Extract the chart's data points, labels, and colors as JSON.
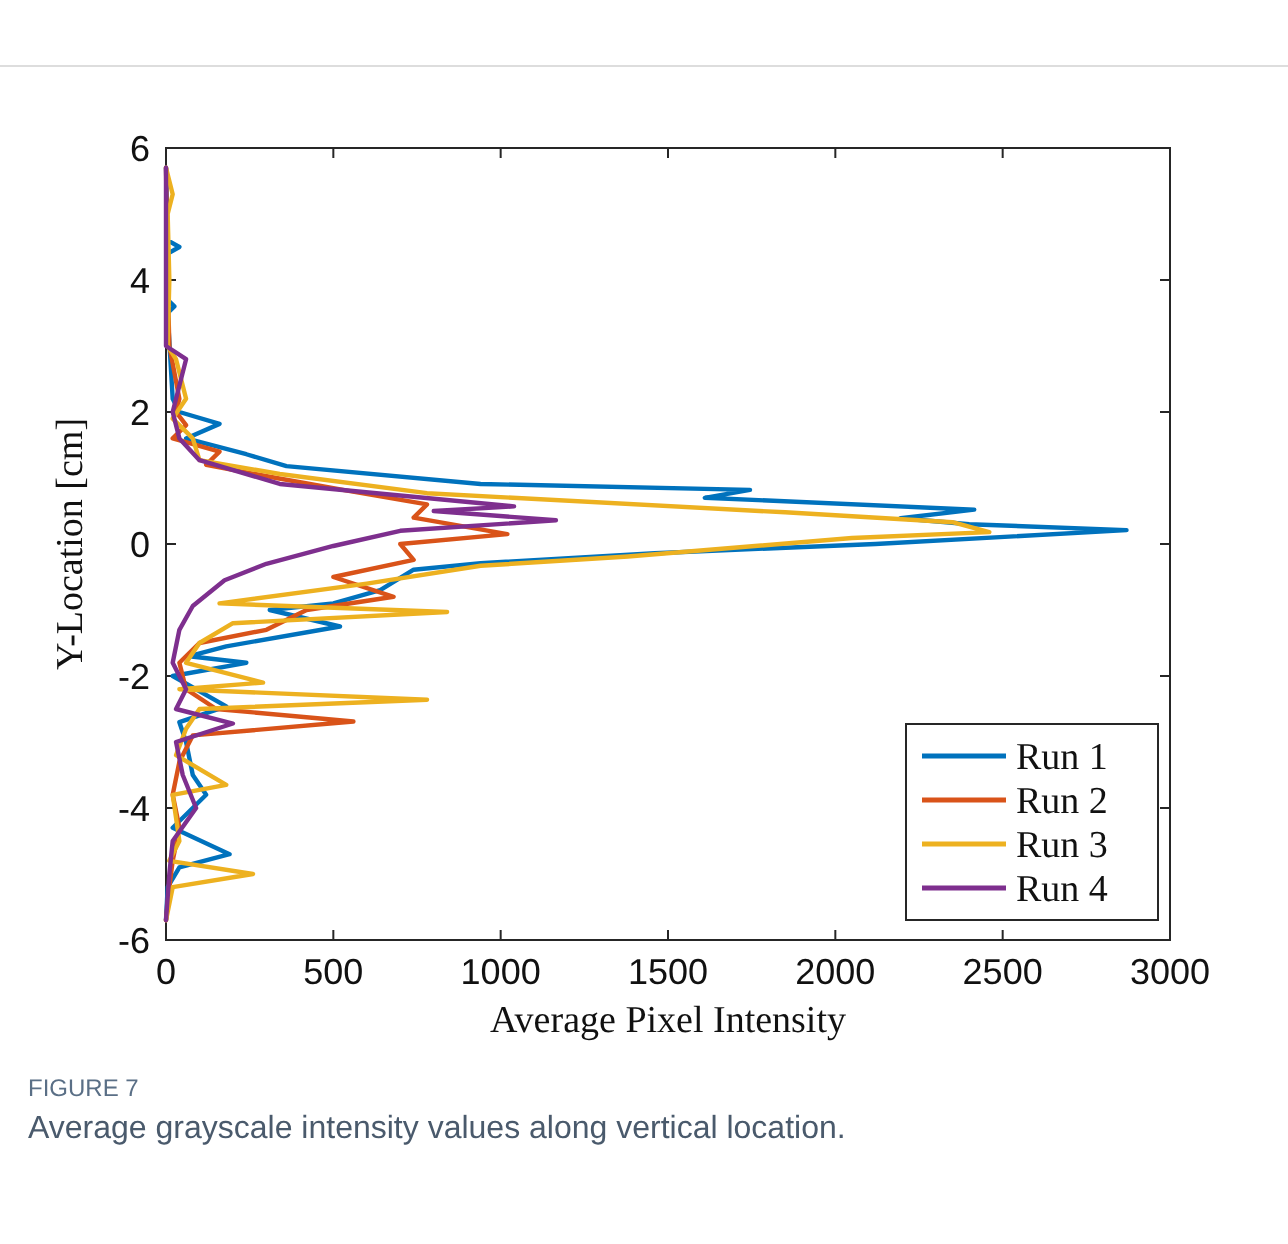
{
  "chart_data": {
    "type": "line",
    "xlabel": "Average Pixel Intensity",
    "ylabel": "Y-Location [cm]",
    "xlim": [
      0,
      3000
    ],
    "xticks": [
      0,
      500,
      1000,
      1500,
      2000,
      2500,
      3000
    ],
    "ylim": [
      -6,
      6
    ],
    "yticks": [
      -6,
      -4,
      -2,
      0,
      2,
      4,
      6
    ],
    "grid": false,
    "legend": "bottom right",
    "annotations": [
      "FIGURE 7",
      "Average grayscale intensity values along vertical location."
    ],
    "series": [
      {
        "name": "Run 1",
        "color": "#0072bd",
        "x": [
          0,
          5,
          40,
          5,
          5,
          25,
          5,
          20,
          40,
          160,
          60,
          240,
          360,
          940,
          1745,
          1610,
          2415,
          2195,
          2400,
          2870,
          2120,
          1460,
          940,
          740,
          640,
          500,
          310,
          520,
          180,
          70,
          240,
          20,
          180,
          40,
          60,
          80,
          120,
          20,
          190,
          40,
          5,
          0
        ],
        "values": [
          5.7,
          4.6,
          4.5,
          4.4,
          3.7,
          3.6,
          3.5,
          2.2,
          2.0,
          1.82,
          1.6,
          1.36,
          1.18,
          0.91,
          0.82,
          0.7,
          0.52,
          0.39,
          0.3,
          0.21,
          0.0,
          -0.14,
          -0.29,
          -0.39,
          -0.7,
          -0.9,
          -1.0,
          -1.25,
          -1.55,
          -1.7,
          -1.8,
          -2.0,
          -2.46,
          -2.7,
          -3.0,
          -3.5,
          -3.8,
          -4.3,
          -4.7,
          -4.9,
          -5.2,
          -5.7
        ]
      },
      {
        "name": "Run 2",
        "color": "#d95319",
        "x": [
          0,
          5,
          10,
          40,
          30,
          60,
          20,
          160,
          120,
          330,
          550,
          780,
          740,
          1020,
          700,
          740,
          500,
          680,
          420,
          300,
          100,
          40,
          60,
          150,
          560,
          80,
          40,
          20,
          40,
          20,
          10,
          0
        ],
        "values": [
          5.7,
          4.0,
          3.0,
          2.2,
          2.0,
          1.8,
          1.6,
          1.4,
          1.2,
          1.0,
          0.8,
          0.6,
          0.4,
          0.15,
          0.0,
          -0.24,
          -0.5,
          -0.8,
          -1.0,
          -1.3,
          -1.5,
          -1.8,
          -2.2,
          -2.5,
          -2.69,
          -2.9,
          -3.3,
          -3.8,
          -4.3,
          -4.8,
          -5.2,
          -5.7
        ]
      },
      {
        "name": "Run 3",
        "color": "#edb120",
        "x": [
          0,
          20,
          5,
          10,
          5,
          30,
          60,
          20,
          80,
          100,
          340,
          780,
          1850,
          2350,
          2460,
          2050,
          1380,
          940,
          600,
          160,
          840,
          200,
          100,
          60,
          290,
          40,
          780,
          100,
          60,
          30,
          180,
          20,
          40,
          10,
          260,
          20,
          0
        ],
        "values": [
          5.7,
          5.3,
          5.0,
          4.0,
          3.0,
          2.8,
          2.2,
          1.9,
          1.6,
          1.27,
          1.06,
          0.77,
          0.48,
          0.33,
          0.18,
          0.09,
          -0.19,
          -0.33,
          -0.6,
          -0.9,
          -1.03,
          -1.2,
          -1.5,
          -1.8,
          -2.1,
          -2.2,
          -2.36,
          -2.5,
          -2.8,
          -3.2,
          -3.65,
          -3.8,
          -4.5,
          -4.8,
          -5.0,
          -5.2,
          -5.7
        ]
      },
      {
        "name": "Run 4",
        "color": "#7e2f8e",
        "x": [
          0,
          0,
          60,
          20,
          40,
          100,
          340,
          1040,
          800,
          1165,
          700,
          500,
          300,
          175,
          80,
          40,
          20,
          60,
          30,
          200,
          30,
          50,
          90,
          20,
          10,
          0
        ],
        "values": [
          5.7,
          3.0,
          2.8,
          2.0,
          1.6,
          1.27,
          0.91,
          0.57,
          0.5,
          0.36,
          0.2,
          -0.03,
          -0.3,
          -0.55,
          -0.94,
          -1.3,
          -1.8,
          -2.2,
          -2.5,
          -2.72,
          -3.0,
          -3.5,
          -4.0,
          -4.5,
          -5.0,
          -5.7
        ]
      }
    ]
  }
}
